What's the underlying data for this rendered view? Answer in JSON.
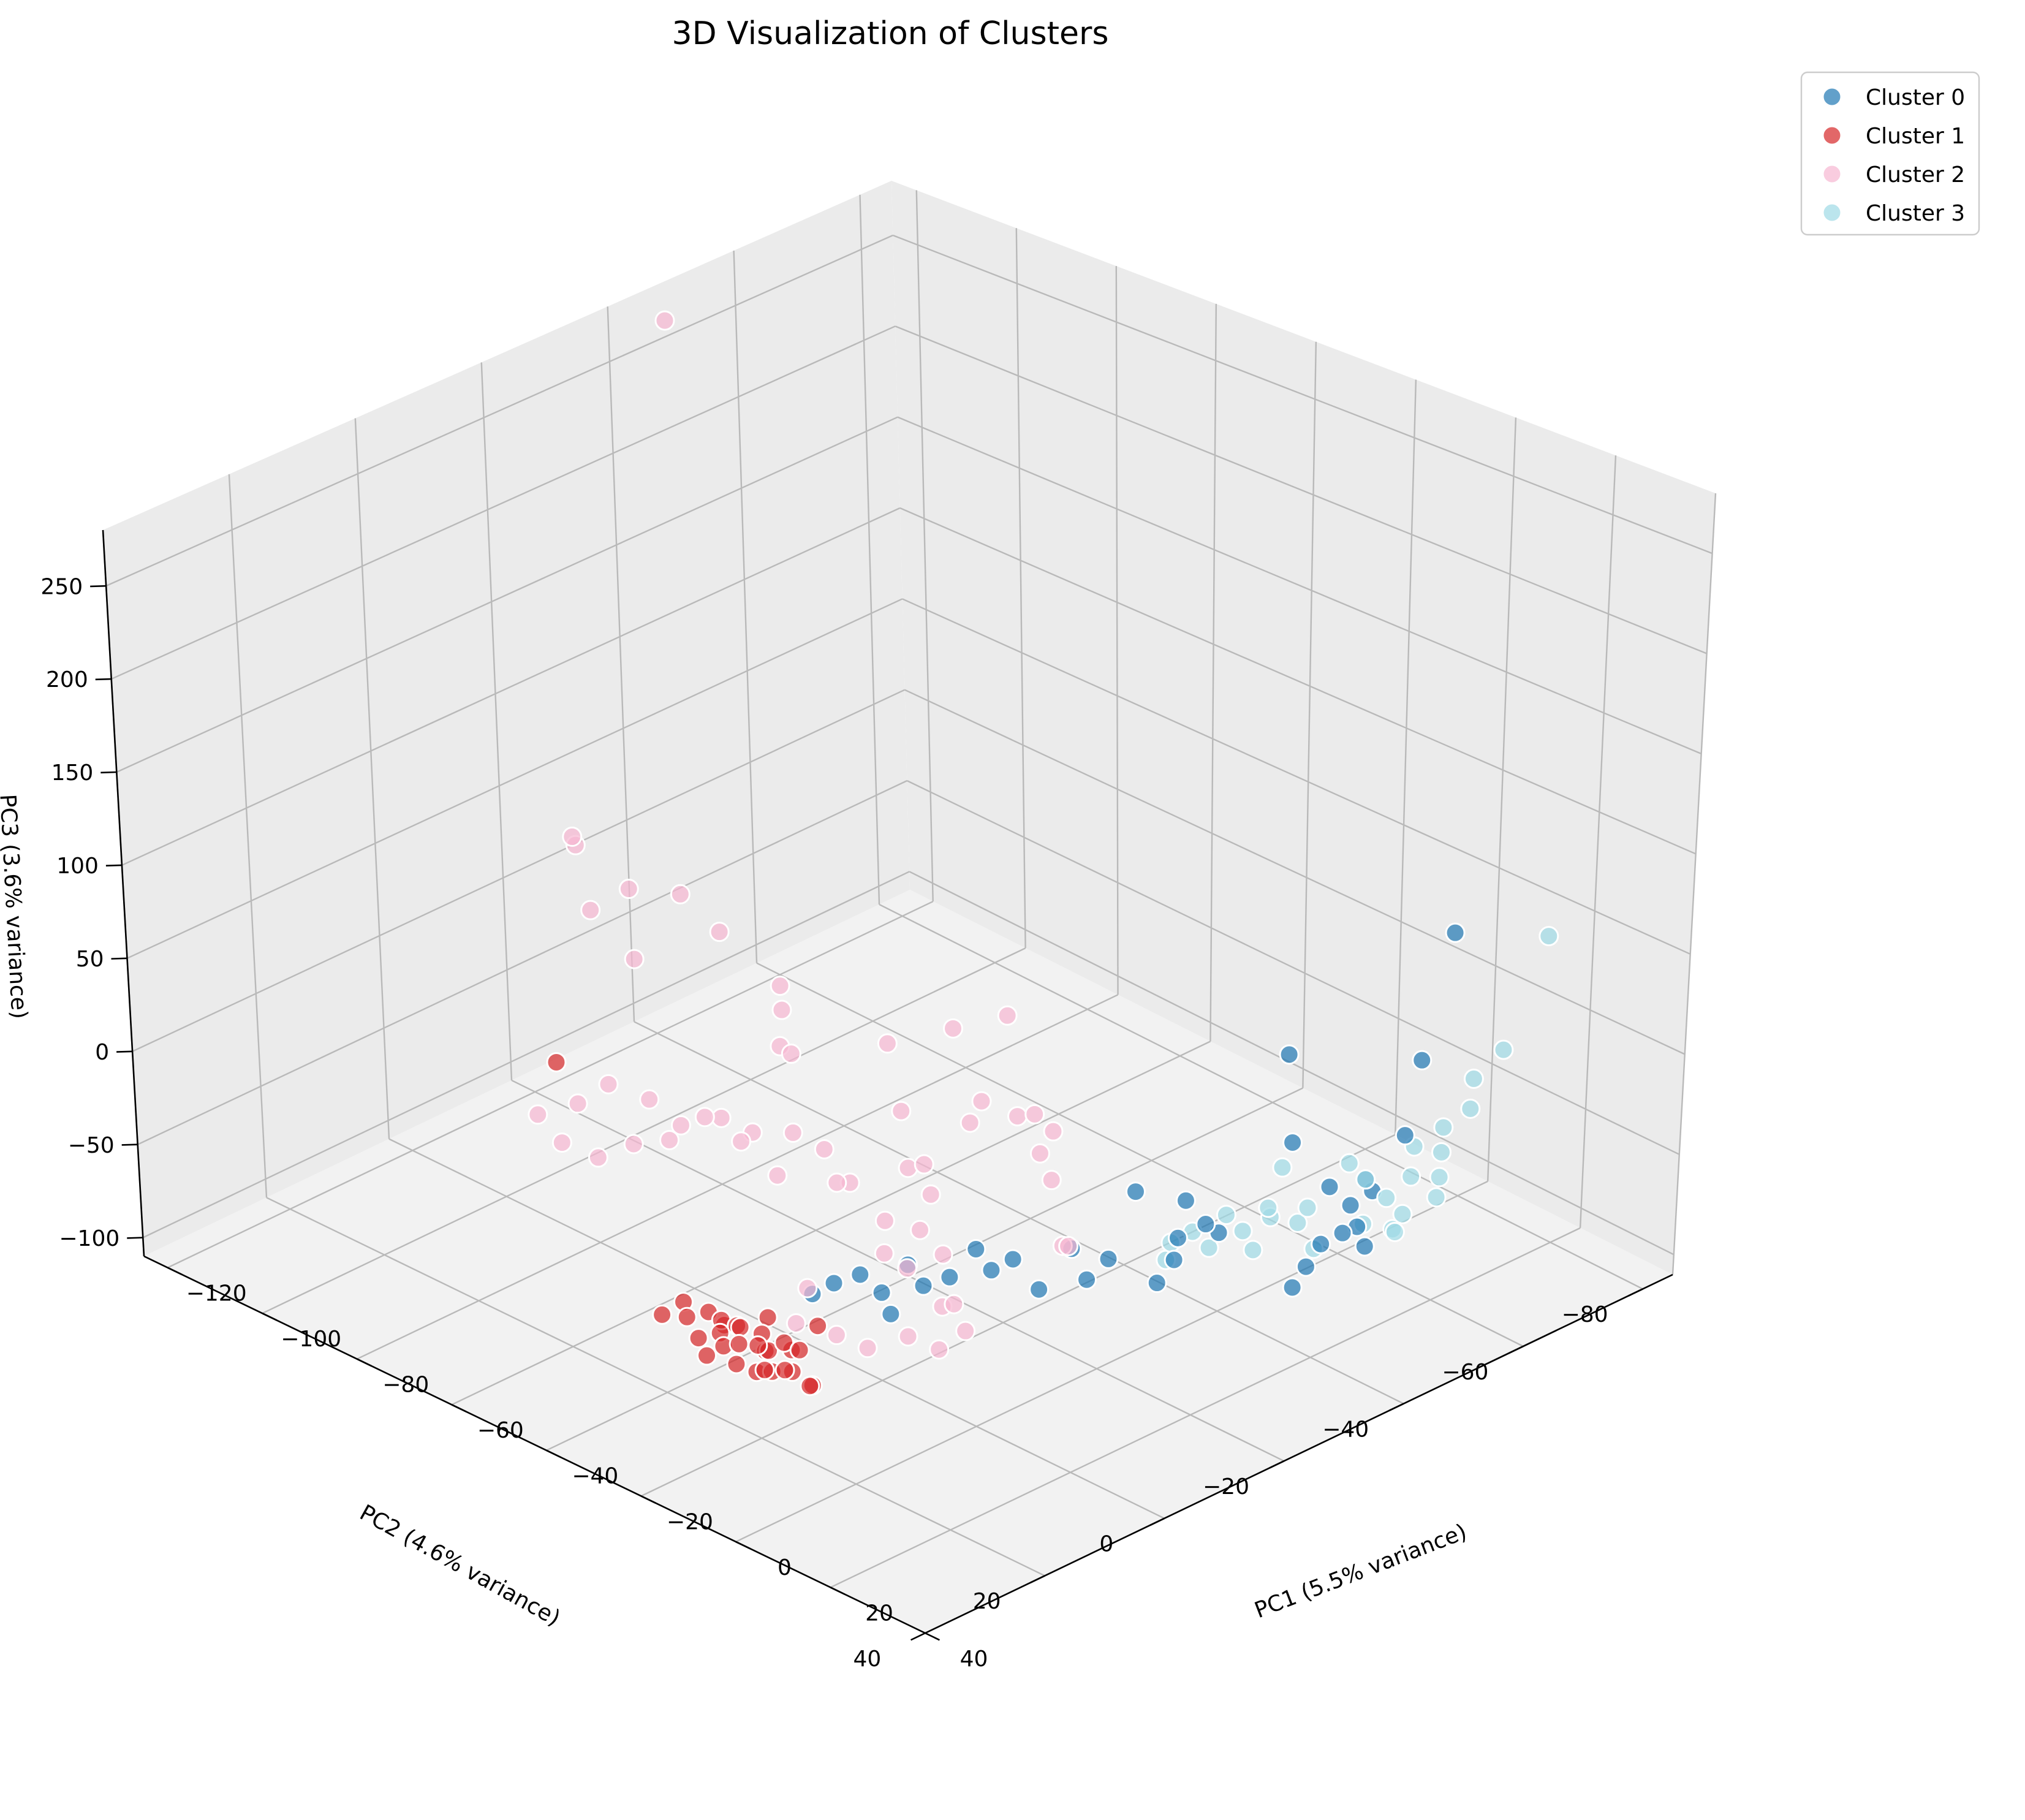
{
  "chart_data": {
    "type": "scatter",
    "projection": "3d",
    "title": "3D Visualization of Clusters",
    "xlabel": "PC1 (5.5% variance)",
    "ylabel": "PC2 (4.6% variance)",
    "zlabel": "PC3 (3.6% variance)",
    "xlim": [
      -125,
      40
    ],
    "ylim": [
      -85,
      40
    ],
    "zlim": [
      -110,
      280
    ],
    "xticks": [
      "−120",
      "−100",
      "−80",
      "−60",
      "−40",
      "−20",
      "0",
      "20",
      "40"
    ],
    "yticks": [
      "−80",
      "−60",
      "−40",
      "−20",
      "0",
      "20",
      "40"
    ],
    "zticks": [
      "−100",
      "−50",
      "0",
      "50",
      "100",
      "150",
      "200",
      "250"
    ],
    "grid": true,
    "legend": "upper-right",
    "colors": {
      "pane_side": "#ebebeb",
      "pane_floor": "#f2f2f2",
      "grid": "#b9b9b9"
    },
    "series": [
      {
        "name": "Cluster 0",
        "color": "#1f77b4",
        "x": [
          10,
          9,
          11,
          7,
          8,
          9,
          12,
          10,
          11,
          8,
          9,
          6,
          5,
          7,
          0,
          1,
          -2,
          -3,
          -1,
          -4,
          -5,
          -8,
          -10,
          -12,
          -15,
          -18,
          -20,
          -22,
          -25,
          -28,
          -30,
          -33,
          -35,
          -38,
          -40,
          -8,
          -15
        ],
        "y": [
          -70,
          -66,
          -62,
          -60,
          -58,
          -56,
          -55,
          -54,
          -52,
          -52,
          -50,
          -50,
          -48,
          -47,
          -40,
          -37,
          -36,
          -35,
          -34,
          -33,
          -30,
          -28,
          -26,
          -25,
          -22,
          -20,
          -18,
          -17,
          -15,
          -13,
          -12,
          -10,
          -8,
          -6,
          -4,
          8,
          -63
        ],
        "z": [
          50,
          -10,
          -40,
          -70,
          -60,
          -80,
          -85,
          -65,
          -75,
          -55,
          -80,
          -95,
          -30,
          -100,
          -70,
          -60,
          -50,
          -80,
          -65,
          -90,
          -40,
          -75,
          -85,
          -70,
          -90,
          -75,
          -80,
          -70,
          -85,
          -90,
          -80,
          -95,
          -85,
          -90,
          -95,
          -50,
          -30
        ]
      },
      {
        "name": "Cluster 1",
        "color": "#d62728",
        "x": [
          -20,
          -22,
          -24,
          -25,
          -26,
          -27,
          -28,
          -28,
          -29,
          -30,
          -30,
          -31,
          -32,
          -33,
          -34,
          -35,
          -36,
          -37,
          -38,
          -39,
          -40,
          -41,
          -42,
          -44,
          -46,
          -48,
          -50,
          -26,
          -34,
          -38,
          -95
        ],
        "y": [
          12,
          10,
          13,
          11,
          9,
          14,
          12,
          10,
          8,
          13,
          11,
          12,
          10,
          14,
          9,
          12,
          11,
          13,
          10,
          12,
          11,
          14,
          9,
          10,
          12,
          11,
          13,
          6,
          8,
          15,
          -5
        ],
        "z": [
          -95,
          -100,
          -90,
          -95,
          -88,
          -92,
          -97,
          -85,
          -93,
          -98,
          -90,
          -87,
          -94,
          -96,
          -89,
          -91,
          -85,
          -93,
          -88,
          -90,
          -86,
          -92,
          -94,
          -88,
          -90,
          -86,
          -92,
          -80,
          -82,
          -96,
          -40
        ]
      },
      {
        "name": "Cluster 2",
        "color": "#f7b6d2",
        "x": [
          -120,
          -55,
          -110,
          -100,
          -105,
          -95,
          -112,
          -90,
          -80,
          -45,
          -60,
          -75,
          -70,
          -85,
          -50,
          -40,
          -30,
          -35,
          -25,
          -20,
          -15,
          -10,
          -5,
          0,
          -45,
          -55,
          -60,
          -65,
          -70,
          -75,
          -80,
          -85,
          -50,
          -40,
          -30,
          -35,
          -20,
          -25,
          -15,
          -10,
          -5,
          -8,
          -12,
          -18,
          -22,
          -28,
          -32,
          -38,
          -42,
          -48,
          -52,
          -58,
          -62,
          -68,
          -72,
          -78,
          -82,
          -88,
          -92,
          -98
        ],
        "y": [
          -45,
          5,
          -20,
          -15,
          -25,
          -18,
          -22,
          -28,
          -30,
          -40,
          -32,
          -26,
          -24,
          -34,
          -35,
          -30,
          -30,
          -28,
          -32,
          -25,
          -22,
          -20,
          -18,
          -15,
          -12,
          -10,
          -8,
          -6,
          -4,
          -2,
          0,
          2,
          -18,
          -16,
          -14,
          -12,
          -10,
          -8,
          -6,
          -4,
          -2,
          0,
          2,
          4,
          6,
          8,
          3,
          -22,
          -24,
          -26,
          -28,
          -20,
          -18,
          -16,
          -14,
          -12,
          -10,
          -8,
          -6,
          -4
        ],
        "z": [
          270,
          110,
          40,
          20,
          10,
          -5,
          30,
          0,
          -20,
          -10,
          -30,
          -40,
          -35,
          -45,
          -15,
          -45,
          -30,
          -25,
          -35,
          -10,
          -20,
          -25,
          -50,
          -40,
          -55,
          -60,
          -45,
          -35,
          -50,
          -55,
          -65,
          -60,
          -70,
          -75,
          -65,
          -80,
          -60,
          -70,
          -75,
          -65,
          -70,
          -80,
          -75,
          -85,
          -80,
          -78,
          -72,
          -68,
          -60,
          -72,
          -50,
          -65,
          -58,
          -62,
          -56,
          -64,
          -52,
          -48,
          -60,
          -70
        ]
      },
      {
        "name": "Cluster 3",
        "color": "#9edae5",
        "x": [
          12,
          11,
          10,
          12,
          9,
          10,
          11,
          13,
          8,
          10,
          11,
          9,
          12,
          10,
          8,
          7,
          9,
          5,
          6,
          4,
          3,
          2,
          4,
          1,
          0,
          -1,
          -2,
          -3,
          -5,
          -6
        ],
        "y": [
          -84,
          -78,
          -74,
          -72,
          -70,
          -69,
          -68,
          -66,
          -66,
          -64,
          -62,
          -62,
          -60,
          -60,
          -58,
          -56,
          -57,
          -52,
          -50,
          -50,
          -48,
          -47,
          -45,
          -45,
          -44,
          -42,
          -40,
          -38,
          -36,
          -36
        ],
        "z": [
          30,
          -20,
          -30,
          -40,
          -50,
          -60,
          -70,
          -75,
          -55,
          -65,
          -80,
          -90,
          -85,
          -70,
          -60,
          -50,
          -80,
          -90,
          -65,
          -75,
          -45,
          -70,
          -60,
          -85,
          -75,
          -65,
          -80,
          -70,
          -75,
          -85
        ]
      }
    ]
  }
}
